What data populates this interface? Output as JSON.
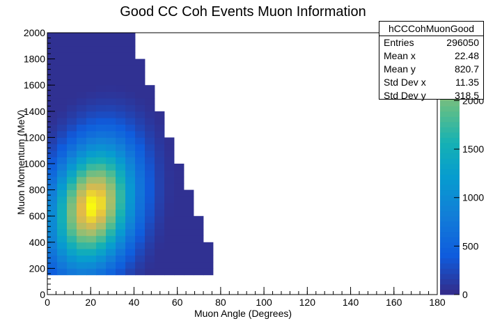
{
  "chart_data": {
    "type": "heatmap",
    "title": "Good CC Coh Events Muon Information",
    "xlabel": "Muon Angle (Degrees)",
    "ylabel": "Muon Momentum (MeV)",
    "xlim": [
      0,
      180
    ],
    "ylim": [
      0,
      2000
    ],
    "x_ticks": [
      "0",
      "20",
      "40",
      "60",
      "80",
      "100",
      "120",
      "140",
      "160",
      "180"
    ],
    "y_ticks": [
      "0",
      "200",
      "400",
      "600",
      "800",
      "1000",
      "1200",
      "1400",
      "1600",
      "1800",
      "2000"
    ],
    "colorbar_ticks": [
      "0",
      "500",
      "1000",
      "1500",
      "2000"
    ],
    "colorbar_range": [
      0,
      2700
    ],
    "bin_width_x": 4.5,
    "bin_width_y": 50,
    "grid": false,
    "stats_box": {
      "name": "hCCCohMuonGood",
      "entries_label": "Entries",
      "entries": "296050",
      "mean_x_label": "Mean x",
      "mean_x": "22.48",
      "mean_y_label": "Mean y",
      "mean_y": "820.7",
      "std_x_label": "Std Dev x",
      "std_x": "11.35",
      "std_y_label": "Std Dev y",
      "std_y": "318.5",
      "placement": "top-right"
    },
    "distribution": {
      "peak_angle_deg": 21,
      "peak_momentum_mev": 680,
      "peak_count": 2700,
      "max_angle_deg": 76,
      "max_momentum_mev": 2000,
      "min_momentum_mev": 150
    },
    "colors": {
      "low": "#352a87",
      "mid_low": "#0f6fd8",
      "mid": "#12a6c6",
      "mid_high": "#6fbd70",
      "high": "#d0b950",
      "max": "#f9fb0e"
    }
  }
}
